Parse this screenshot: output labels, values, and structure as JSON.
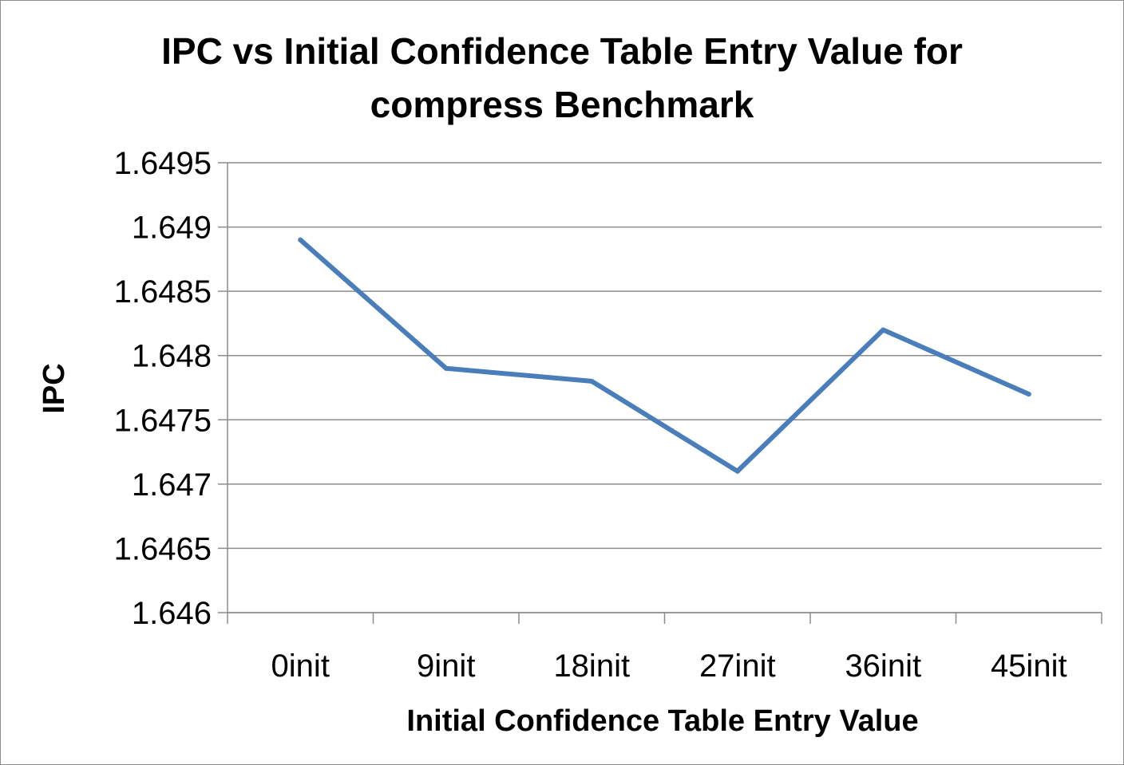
{
  "chart_data": {
    "type": "line",
    "title_lines": [
      "IPC vs Initial Confidence Table Entry Value for",
      "compress Benchmark"
    ],
    "xlabel": "Initial Confidence Table Entry Value",
    "ylabel": "IPC",
    "categories": [
      "0init",
      "9init",
      "18init",
      "27init",
      "36init",
      "45init"
    ],
    "series": [
      {
        "values": [
          1.6489,
          1.6479,
          1.6478,
          1.6471,
          1.6482,
          1.6477
        ]
      }
    ],
    "ylim": [
      1.646,
      1.6495
    ],
    "yticks": [
      1.646,
      1.6465,
      1.647,
      1.6475,
      1.648,
      1.6485,
      1.649,
      1.6495
    ],
    "ytick_labels": [
      "1.646",
      "1.6465",
      "1.647",
      "1.6475",
      "1.648",
      "1.6485",
      "1.649",
      "1.6495"
    ],
    "grid": true,
    "legend": "none",
    "colors": {
      "series": "#4a7ebb",
      "grid": "#8c8c8c",
      "axis": "#8c8c8c"
    }
  }
}
